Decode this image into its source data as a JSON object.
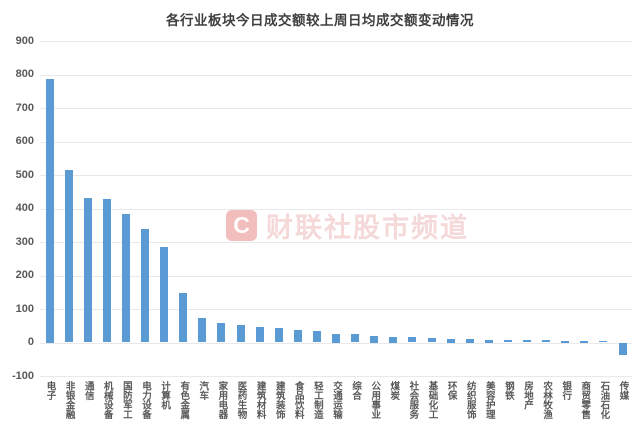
{
  "title": "各行业板块今日成交额较上周日均成交额变动情况",
  "watermark": {
    "logo_letter": "C",
    "text": "财联社股市频道"
  },
  "colors": {
    "bar": "#5b9bd5",
    "grid": "#e9e9e9",
    "axis_text": "#595959",
    "title_text": "#3f3f3f",
    "watermark_red": "#dd8080"
  },
  "chart_data": {
    "type": "bar",
    "title": "各行业板块今日成交额较上周日均成交额变动情况",
    "categories": [
      "电子",
      "非银金融",
      "通信",
      "机械设备",
      "国防军工",
      "电力设备",
      "计算机",
      "有色金属",
      "汽车",
      "家用电器",
      "医药生物",
      "建筑材料",
      "建筑装饰",
      "食品饮料",
      "轻工制造",
      "交通运输",
      "综合",
      "公用事业",
      "煤炭",
      "社会服务",
      "基础化工",
      "环保",
      "纺织服饰",
      "美容护理",
      "钢铁",
      "房地产",
      "农林牧渔",
      "银行",
      "商贸零售",
      "石油石化",
      "传媒"
    ],
    "values": [
      788,
      514,
      432,
      428,
      384,
      338,
      286,
      148,
      72,
      58,
      52,
      45,
      42,
      38,
      33,
      27,
      25,
      21,
      18,
      16,
      14,
      12,
      10,
      9,
      8,
      7,
      7,
      6,
      6,
      5,
      -36
    ],
    "xlabel": "",
    "ylabel": "",
    "ylim": [
      -100,
      900
    ],
    "yticks": [
      900,
      800,
      700,
      600,
      500,
      400,
      300,
      200,
      100,
      0,
      -100
    ],
    "grid": true,
    "legend": "none",
    "bar_color": "#5b9bd5"
  }
}
